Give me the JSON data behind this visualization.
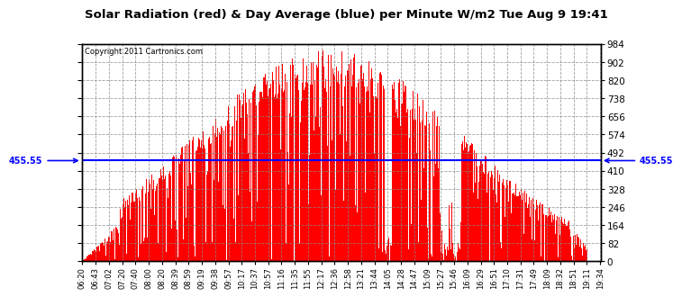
{
  "title": "Solar Radiation (red) & Day Average (blue) per Minute W/m2 Tue Aug 9 19:41",
  "copyright": "Copyright 2011 Cartronics.com",
  "ymin": 0.0,
  "ymax": 984.0,
  "yticks": [
    0.0,
    82.0,
    164.0,
    246.0,
    328.0,
    410.0,
    492.0,
    574.0,
    656.0,
    738.0,
    820.0,
    902.0,
    984.0
  ],
  "day_average": 455.55,
  "bar_color": "#FF0000",
  "avg_line_color": "#0000FF",
  "background_color": "#FFFFFF",
  "grid_color": "#888888",
  "x_labels": [
    "06:20",
    "06:43",
    "07:02",
    "07:20",
    "07:40",
    "08:00",
    "08:20",
    "08:39",
    "08:59",
    "09:19",
    "09:38",
    "09:57",
    "10:17",
    "10:37",
    "10:57",
    "11:16",
    "11:35",
    "11:55",
    "12:17",
    "12:36",
    "12:58",
    "13:21",
    "13:44",
    "14:05",
    "14:28",
    "14:47",
    "15:09",
    "15:27",
    "15:46",
    "16:09",
    "16:29",
    "16:51",
    "17:10",
    "17:31",
    "17:49",
    "18:09",
    "18:32",
    "18:51",
    "19:11",
    "19:34"
  ]
}
